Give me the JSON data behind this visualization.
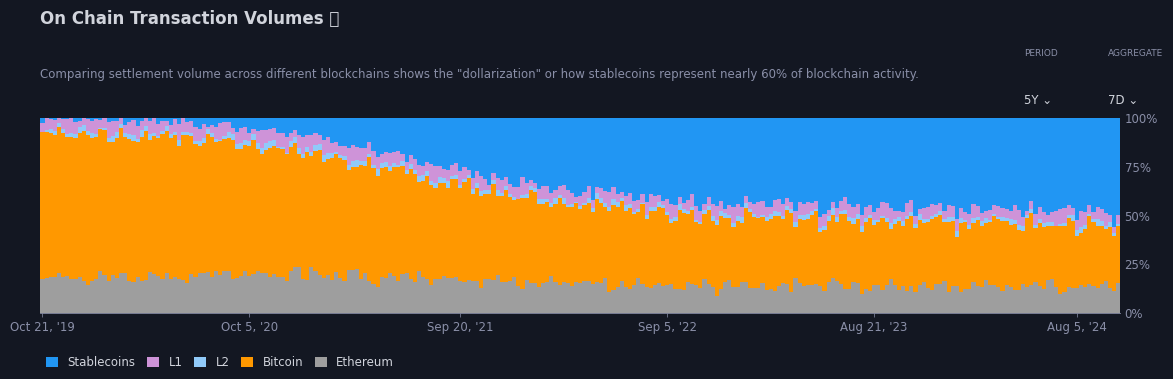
{
  "title": "On Chain Transaction Volumes ⧉",
  "subtitle": "Comparing settlement volume across different blockchains shows the \"dollarization\" or how stablecoins represent nearly 60% of blockchain activity.",
  "bg_color": "#131722",
  "plot_bg_color": "#131722",
  "x_tick_labels": [
    "Oct 21, '19",
    "Oct 5, '20",
    "Sep 20, '21",
    "Sep 5, '22",
    "Aug 21, '23",
    "Aug 5, '24"
  ],
  "y_tick_labels": [
    "0%",
    "25%",
    "50%",
    "75%",
    "100%"
  ],
  "colors": {
    "stablecoins": "#2196F3",
    "L1": "#CE93D8",
    "L2": "#90CAF9",
    "bitcoin": "#FF9800",
    "ethereum": "#9E9E9E"
  },
  "legend_items": [
    "Stablecoins",
    "L1",
    "L2",
    "Bitcoin",
    "Ethereum"
  ],
  "title_fontsize": 12,
  "subtitle_fontsize": 8.5,
  "axis_fontsize": 8.5,
  "legend_fontsize": 8.5,
  "text_color": "#D1D4DC",
  "title_color": "#D1D4DC",
  "subtitle_color": "#8A8FA8",
  "axis_color": "#8A8FA8",
  "grid_color": "#2A2E39",
  "n_bars": 261
}
